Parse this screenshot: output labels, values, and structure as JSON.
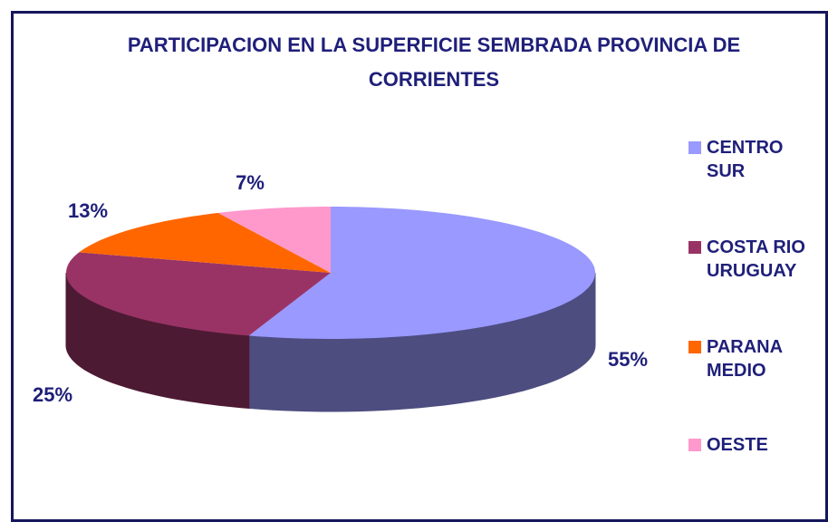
{
  "chart_data": {
    "type": "pie",
    "title": "PARTICIPACION EN LA SUPERFICIE SEMBRADA PROVINCIA DE CORRIENTES",
    "categories": [
      "CENTRO SUR",
      "COSTA RIO URUGUAY",
      "PARANA MEDIO",
      "OESTE"
    ],
    "values": [
      55,
      25,
      13,
      7
    ],
    "value_labels": [
      "55%",
      "25%",
      "13%",
      "7%"
    ],
    "colors": [
      "#9999ff",
      "#993366",
      "#ff6600",
      "#ff99cc"
    ],
    "legend": "right"
  }
}
